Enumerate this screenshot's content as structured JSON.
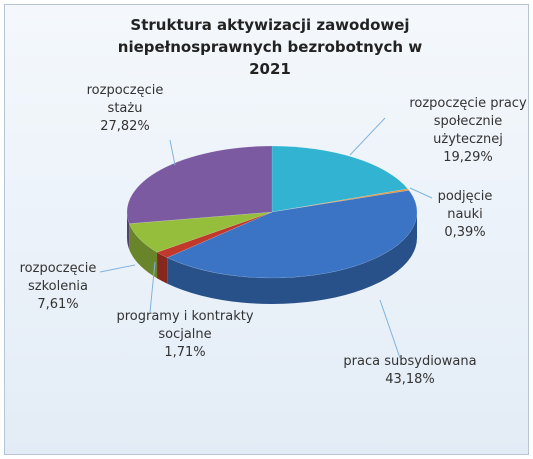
{
  "chart_data": {
    "type": "pie",
    "title": "Struktura aktywizacji zawodowej niepełnosprawnych bezrobotnych w 2021",
    "categories": [
      "rozpoczęcie pracy społecznie użytecznej",
      "podjęcie nauki",
      "praca subsydiowana",
      "programy i kontrakty socjalne",
      "rozpoczęcie szkolenia",
      "rozpoczęcie stażu"
    ],
    "values": [
      19.29,
      0.39,
      43.18,
      1.71,
      7.61,
      27.82
    ],
    "value_labels": [
      "19,29%",
      "0,39%",
      "43,18%",
      "1,71%",
      "7,61%",
      "27,82%"
    ],
    "colors": [
      "#31b3d1",
      "#e8953a",
      "#3b74c4",
      "#c0392b",
      "#95be3d",
      "#7b5aa1"
    ]
  }
}
